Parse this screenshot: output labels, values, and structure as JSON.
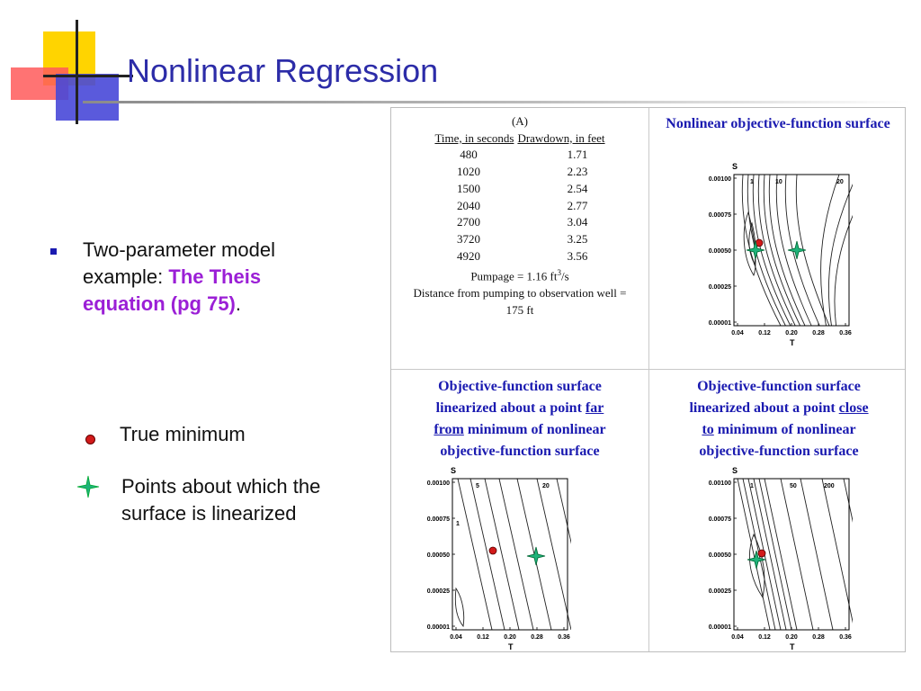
{
  "title": "Nonlinear Regression",
  "bullet": {
    "prefix": "Two-parameter model example: ",
    "highlight": "The Theis equation (pg 75)",
    "suffix": "."
  },
  "legend": {
    "true_minimum": "True minimum",
    "linearized_points": "Points about which the surface is linearized"
  },
  "table": {
    "label": "(A)",
    "col1_header": "Time, in seconds",
    "col2_header": "Drawdown, in feet",
    "rows": [
      [
        "480",
        "1.71"
      ],
      [
        "1020",
        "2.23"
      ],
      [
        "1500",
        "2.54"
      ],
      [
        "2040",
        "2.77"
      ],
      [
        "2700",
        "3.04"
      ],
      [
        "3720",
        "3.25"
      ],
      [
        "4920",
        "3.56"
      ]
    ],
    "pumpage_prefix": "Pumpage = 1.16 ft",
    "pumpage_exp": "3",
    "pumpage_suffix": "/s",
    "distance": "Distance from pumping to observation well = 175 ft"
  },
  "panels": {
    "top_right_title": "Nonlinear objective-function surface",
    "bottom_left": {
      "line1": "Objective-function surface",
      "line2_pre": "linearized about a point ",
      "line2_u": "far",
      "line3_u": "from",
      "line3_post": " minimum of nonlinear",
      "line4": "objective-function surface"
    },
    "bottom_right": {
      "line1": "Objective-function surface",
      "line2_pre": "linearized about a point ",
      "line2_u": "close",
      "line3_u": "to",
      "line3_post": " minimum of nonlinear",
      "line4": "objective-function surface"
    }
  },
  "axes": {
    "y_label": "S",
    "x_label": "T",
    "y_ticks": [
      "0.00100",
      "0.00075",
      "0.00050",
      "0.00025",
      "0.00001"
    ],
    "x_ticks": [
      "0.04",
      "0.12",
      "0.20",
      "0.28",
      "0.36"
    ]
  },
  "contour_labels": {
    "top_right": [
      "1",
      "10",
      "20"
    ],
    "bottom_left": [
      "5",
      "20",
      "1"
    ],
    "bottom_right": [
      "1",
      "50",
      "200"
    ]
  },
  "colors": {
    "title": "#2c2ca8",
    "panel_title": "#1a1ab0",
    "highlight": "#9b1fd6",
    "true_minimum": "#d21a1a",
    "linearization_point": "#1fb37a"
  }
}
